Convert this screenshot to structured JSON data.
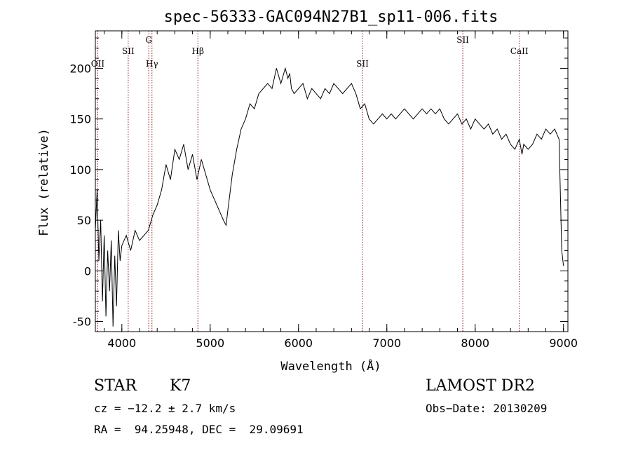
{
  "chart_data": {
    "type": "line",
    "title": "spec-56333-GAC094N27B1_sp11-006.fits",
    "xlabel": "Wavelength (Å)",
    "ylabel": "Flux (relative)",
    "xlim": [
      3700,
      9050
    ],
    "ylim": [
      -60,
      237
    ],
    "xticks": [
      4000,
      5000,
      6000,
      7000,
      8000,
      9000
    ],
    "yticks": [
      -50,
      0,
      50,
      100,
      150,
      200
    ],
    "grid": false,
    "line_color": "#000000",
    "marker_color": "#8b1a1a",
    "spectral_lines": [
      {
        "label": "OII",
        "x": 3727,
        "row": 3
      },
      {
        "label": "SII",
        "x": 4072,
        "row": 2
      },
      {
        "label": "G",
        "x": 4305,
        "row": 1
      },
      {
        "label": "Hγ",
        "x": 4341,
        "row": 3
      },
      {
        "label": "Hβ",
        "x": 4861,
        "row": 2
      },
      {
        "label": "SII",
        "x": 6724,
        "row": 3
      },
      {
        "label": "SII",
        "x": 7860,
        "row": 1
      },
      {
        "label": "CaII",
        "x": 8500,
        "row": 2
      }
    ],
    "series": [
      {
        "x": [
          3700,
          3720,
          3740,
          3760,
          3780,
          3800,
          3820,
          3840,
          3860,
          3880,
          3900,
          3920,
          3940,
          3960,
          3980,
          4000,
          4050,
          4100,
          4150,
          4200,
          4250,
          4300,
          4350,
          4400,
          4450,
          4500,
          4550,
          4600,
          4650,
          4700,
          4750,
          4800,
          4850,
          4900,
          4950,
          5000,
          5050,
          5100,
          5150,
          5180,
          5200,
          5250,
          5300,
          5350,
          5400,
          5450,
          5500,
          5550,
          5600,
          5650,
          5700,
          5750,
          5800,
          5850,
          5880,
          5900,
          5920,
          5950,
          6000,
          6050,
          6100,
          6150,
          6200,
          6250,
          6300,
          6350,
          6400,
          6450,
          6500,
          6550,
          6600,
          6650,
          6700,
          6750,
          6800,
          6850,
          6900,
          6950,
          7000,
          7050,
          7100,
          7150,
          7200,
          7250,
          7300,
          7350,
          7400,
          7450,
          7500,
          7550,
          7600,
          7650,
          7700,
          7750,
          7800,
          7850,
          7900,
          7950,
          8000,
          8050,
          8100,
          8150,
          8200,
          8250,
          8300,
          8350,
          8400,
          8450,
          8500,
          8530,
          8550,
          8600,
          8650,
          8700,
          8750,
          8800,
          8850,
          8900,
          8950,
          8980,
          9000
        ],
        "y": [
          40,
          80,
          10,
          50,
          -30,
          35,
          -45,
          20,
          -20,
          30,
          -55,
          15,
          -35,
          40,
          10,
          25,
          35,
          20,
          40,
          30,
          35,
          40,
          55,
          65,
          80,
          105,
          90,
          120,
          110,
          125,
          100,
          115,
          90,
          110,
          95,
          80,
          70,
          60,
          50,
          45,
          60,
          95,
          120,
          140,
          150,
          165,
          160,
          175,
          180,
          185,
          180,
          200,
          185,
          200,
          190,
          195,
          180,
          175,
          180,
          185,
          170,
          180,
          175,
          170,
          180,
          175,
          185,
          180,
          175,
          180,
          185,
          175,
          160,
          165,
          150,
          145,
          150,
          155,
          150,
          155,
          150,
          155,
          160,
          155,
          150,
          155,
          160,
          155,
          160,
          155,
          160,
          150,
          145,
          150,
          155,
          145,
          150,
          140,
          150,
          145,
          140,
          145,
          135,
          140,
          130,
          135,
          125,
          120,
          130,
          115,
          125,
          120,
          125,
          135,
          130,
          140,
          135,
          140,
          130,
          20,
          5
        ]
      }
    ]
  },
  "info": {
    "class_label": "STAR",
    "subclass_label": "K7",
    "cz_text": "cz = −12.2 ± 2.7 km/s",
    "coord_text": "RA =  94.25948, DEC =  29.09691",
    "survey_label": "LAMOST DR2",
    "obsdate_text": "Obs−Date: 20130209"
  }
}
